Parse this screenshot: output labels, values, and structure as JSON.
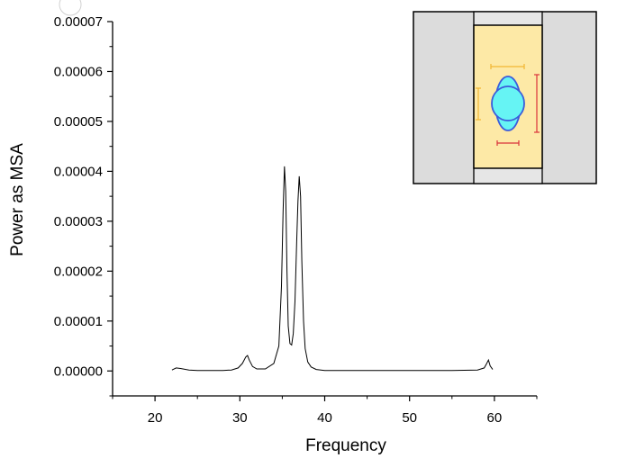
{
  "chart_data": {
    "type": "line",
    "xlabel": "Frequency",
    "ylabel": "Power as MSA",
    "xlim": [
      15,
      65
    ],
    "ylim": [
      -5e-06,
      7e-05
    ],
    "x_ticks": [
      20,
      30,
      40,
      50,
      60
    ],
    "x_tick_labels": [
      "20",
      "30",
      "40",
      "50",
      "60"
    ],
    "y_ticks": [
      0,
      1e-05,
      2e-05,
      3e-05,
      4e-05,
      5e-05,
      6e-05,
      7e-05
    ],
    "y_tick_labels": [
      "0.00000",
      "0.00001",
      "0.00002",
      "0.00003",
      "0.00004",
      "0.00005",
      "0.00006",
      "0.00007"
    ],
    "grid": false,
    "line_color": "#000000",
    "series": [
      {
        "x": [
          22.0,
          22.5,
          23.0,
          24.0,
          25.0,
          26.0,
          27.0,
          28.0,
          29.0,
          29.8,
          30.3,
          30.7,
          30.9,
          31.1,
          31.5,
          32.0,
          33.0,
          34.0,
          34.6,
          34.9,
          35.1,
          35.25,
          35.4,
          35.55,
          35.7,
          35.9,
          36.1,
          36.3,
          36.5,
          36.7,
          36.85,
          37.0,
          37.15,
          37.3,
          37.5,
          37.7,
          38.0,
          38.4,
          39.0,
          40.0,
          42.0,
          45.0,
          50.0,
          55.0,
          58.0,
          58.8,
          59.1,
          59.3,
          59.5,
          59.8
        ],
        "y": [
          2e-07,
          6e-07,
          5e-07,
          2e-07,
          1e-07,
          1e-07,
          1e-07,
          1e-07,
          2e-07,
          6e-07,
          1.5e-06,
          2.8e-06,
          3.1e-06,
          2.2e-06,
          9e-07,
          4e-07,
          4e-07,
          1.5e-06,
          5e-06,
          1.7e-05,
          3.2e-05,
          4.1e-05,
          3.6e-05,
          2e-05,
          9e-06,
          5.5e-06,
          5.2e-06,
          7.5e-06,
          1.4e-05,
          2.6e-05,
          3.4e-05,
          3.9e-05,
          3.5e-05,
          2.2e-05,
          1e-05,
          4.5e-06,
          1.8e-06,
          8e-07,
          3e-07,
          1e-07,
          1e-07,
          1e-07,
          1e-07,
          1e-07,
          2e-07,
          6e-07,
          1.5e-06,
          2.2e-06,
          1e-06,
          3e-07
        ]
      }
    ],
    "inset": {
      "outer_fill": "#dcdcdc",
      "inner_fill": "#fde9a6",
      "ellipse_fill": "#66f4f4",
      "ellipse_stroke": "#3b5bdb",
      "orange_marker": "#f2b632",
      "red_marker": "#d9323a"
    }
  }
}
